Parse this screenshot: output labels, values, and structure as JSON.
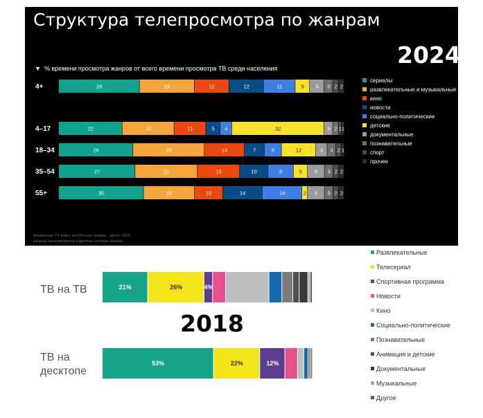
{
  "panel_2024": {
    "title": "Структура телепросмотра по жанрам",
    "year_label": "2024",
    "subtitle_marker": "▼",
    "subtitle": "% времени просмотра жанров от всего времени просмотра ТВ среди населения",
    "source_line1": "Mediascope TV Index, вся Россия, январь - август 2024",
    "source_line2": "Каналы мультиплексов и крупные сетевые каналы"
  },
  "panel_2018": {
    "year_label": "2018"
  },
  "chart_data": [
    {
      "type": "bar",
      "orientation": "horizontal",
      "stacked": true,
      "normalized": true,
      "title": "Структура телепросмотра по жанрам",
      "year": "2024",
      "xlabel": "% времени просмотра жанров от всего времени просмотра ТВ среди населения",
      "categories": [
        "4+",
        "4–17",
        "18–34",
        "35–54",
        "55+"
      ],
      "series": [
        {
          "name": "сериалы",
          "color": "#12a38f",
          "values": [
            28,
            22,
            26,
            27,
            30
          ]
        },
        {
          "name": "развлекательные и музыкальные",
          "color": "#f6a53c",
          "values": [
            19,
            18,
            25,
            22,
            18
          ]
        },
        {
          "name": "кино",
          "color": "#ea4a12",
          "values": [
            12,
            11,
            14,
            15,
            10
          ]
        },
        {
          "name": "новости",
          "color": "#0a4d86",
          "values": [
            12,
            5,
            7,
            10,
            14
          ]
        },
        {
          "name": "социально-политические",
          "color": "#3d7fe3",
          "values": [
            11,
            4,
            6,
            9,
            14
          ]
        },
        {
          "name": "детские",
          "color": "#f7e12a",
          "values": [
            5,
            32,
            12,
            5,
            2
          ]
        },
        {
          "name": "документальные",
          "color": "#9c9c9c",
          "values": [
            5,
            3,
            4,
            6,
            6
          ]
        },
        {
          "name": "познавательные",
          "color": "#6e6e6e",
          "values": [
            3,
            2,
            3,
            3,
            3
          ]
        },
        {
          "name": "спорт",
          "color": "#4a4a4a",
          "values": [
            2,
            1,
            2,
            2,
            2
          ]
        },
        {
          "name": "прочее",
          "color": "#2e2e2e",
          "values": [
            2,
            1,
            1,
            2,
            2
          ]
        }
      ],
      "legend_position": "right"
    },
    {
      "type": "bar",
      "orientation": "horizontal",
      "stacked": true,
      "normalized": true,
      "title": "",
      "year": "2018",
      "categories": [
        "ТВ на ТВ",
        "ТВ на десктопе"
      ],
      "series": [
        {
          "name": "Развлекательные",
          "color": "#17a589",
          "values": [
            21,
            53
          ],
          "labels": [
            "21%",
            "53%"
          ]
        },
        {
          "name": "Телесериал",
          "color": "#f4e41a",
          "values": [
            26,
            22
          ],
          "labels": [
            "26%",
            "22%"
          ]
        },
        {
          "name": "Спортивная программа",
          "color": "#5b3e8f",
          "values": [
            4,
            12
          ],
          "labels": [
            "4%",
            "12%"
          ]
        },
        {
          "name": "Новости",
          "color": "#e6508a",
          "values": [
            6,
            6
          ],
          "labels": [
            "",
            ""
          ]
        },
        {
          "name": "Кино",
          "color": "#bdbdbd",
          "values": [
            20,
            3
          ],
          "labels": [
            "",
            ""
          ]
        },
        {
          "name": "Социально-политические",
          "color": "#1769b0",
          "values": [
            6,
            2
          ],
          "labels": [
            "",
            ""
          ]
        },
        {
          "name": "Познавательные",
          "color": "#7a7a7a",
          "values": [
            5,
            1
          ],
          "labels": [
            "",
            ""
          ]
        },
        {
          "name": "Анимация и детские",
          "color": "#4f4f4f",
          "values": [
            3,
            0.5
          ],
          "labels": [
            "",
            ""
          ]
        },
        {
          "name": "Документальные",
          "color": "#3a3a3a",
          "values": [
            4,
            0.5
          ],
          "labels": [
            "",
            ""
          ]
        },
        {
          "name": "Музыкальные",
          "color": "#a8a8a8",
          "values": [
            1,
            0
          ],
          "labels": [
            "",
            ""
          ]
        },
        {
          "name": "Другое",
          "color": "#5c5c5c",
          "values": [
            1,
            0
          ],
          "labels": [
            "",
            ""
          ]
        }
      ],
      "legend_position": "right"
    }
  ]
}
